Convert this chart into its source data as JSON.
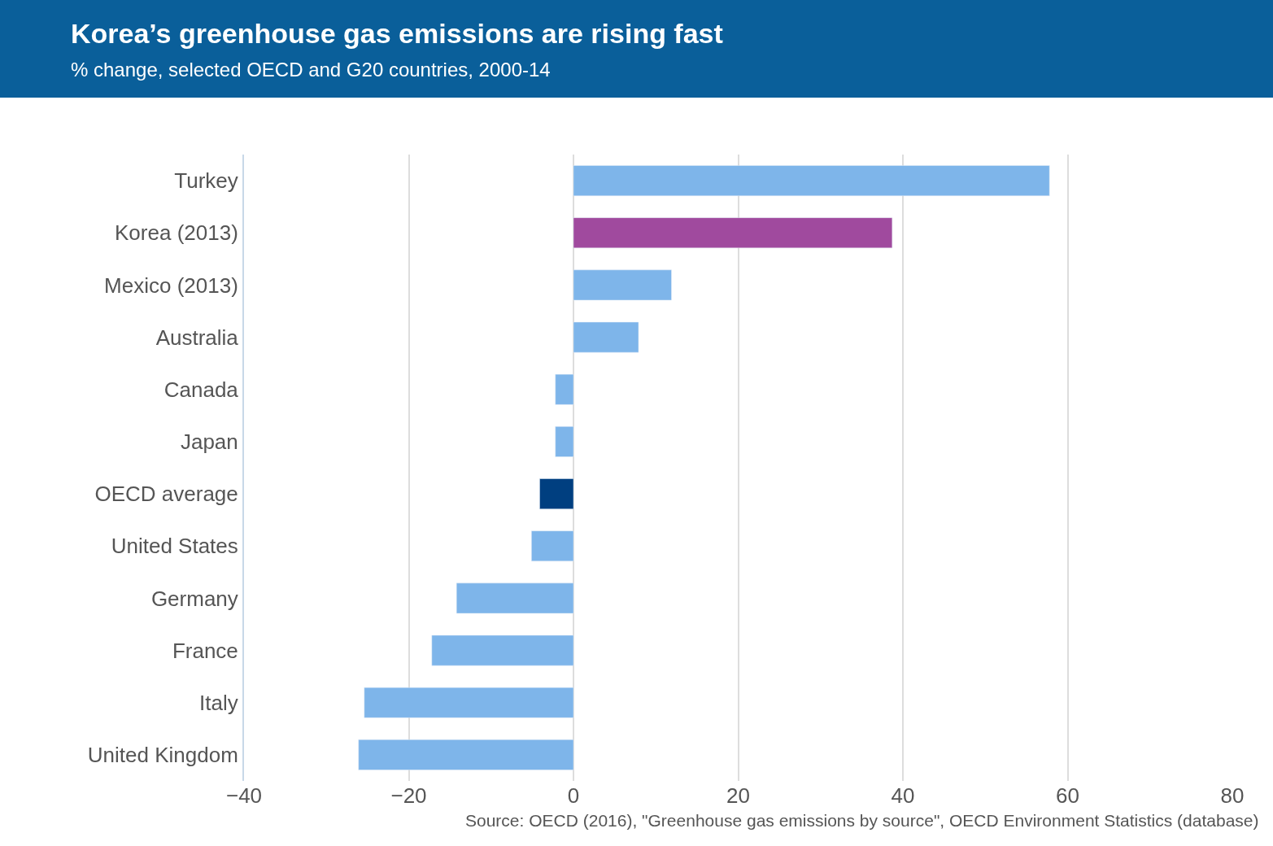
{
  "chart_data": {
    "type": "bar",
    "orientation": "horizontal",
    "title": "Korea’s greenhouse gas emissions are rising fast",
    "subtitle": "% change, selected OECD and G20 countries, 2000-14",
    "categories": [
      "Turkey",
      "Korea (2013)",
      "Mexico (2013)",
      "Australia",
      "Canada",
      "Japan",
      "OECD average",
      "United States",
      "Germany",
      "France",
      "Italy",
      "United Kingdom"
    ],
    "values": [
      57.8,
      38.7,
      11.9,
      7.9,
      -2.2,
      -2.2,
      -4.1,
      -5.1,
      -14.2,
      -17.2,
      -25.4,
      -26.1
    ],
    "colors": [
      "#7eb5ea",
      "#a04a9e",
      "#7eb5ea",
      "#7eb5ea",
      "#7eb5ea",
      "#7eb5ea",
      "#003f80",
      "#7eb5ea",
      "#7eb5ea",
      "#7eb5ea",
      "#7eb5ea",
      "#7eb5ea"
    ],
    "xlim": [
      -40,
      80
    ],
    "xticks": [
      -40,
      -20,
      0,
      20,
      40,
      60,
      80
    ],
    "grid": "x",
    "annotations": [
      "Source: OECD (2016), \"Greenhouse gas emissions by source\", OECD Environment Statistics (database)"
    ]
  }
}
